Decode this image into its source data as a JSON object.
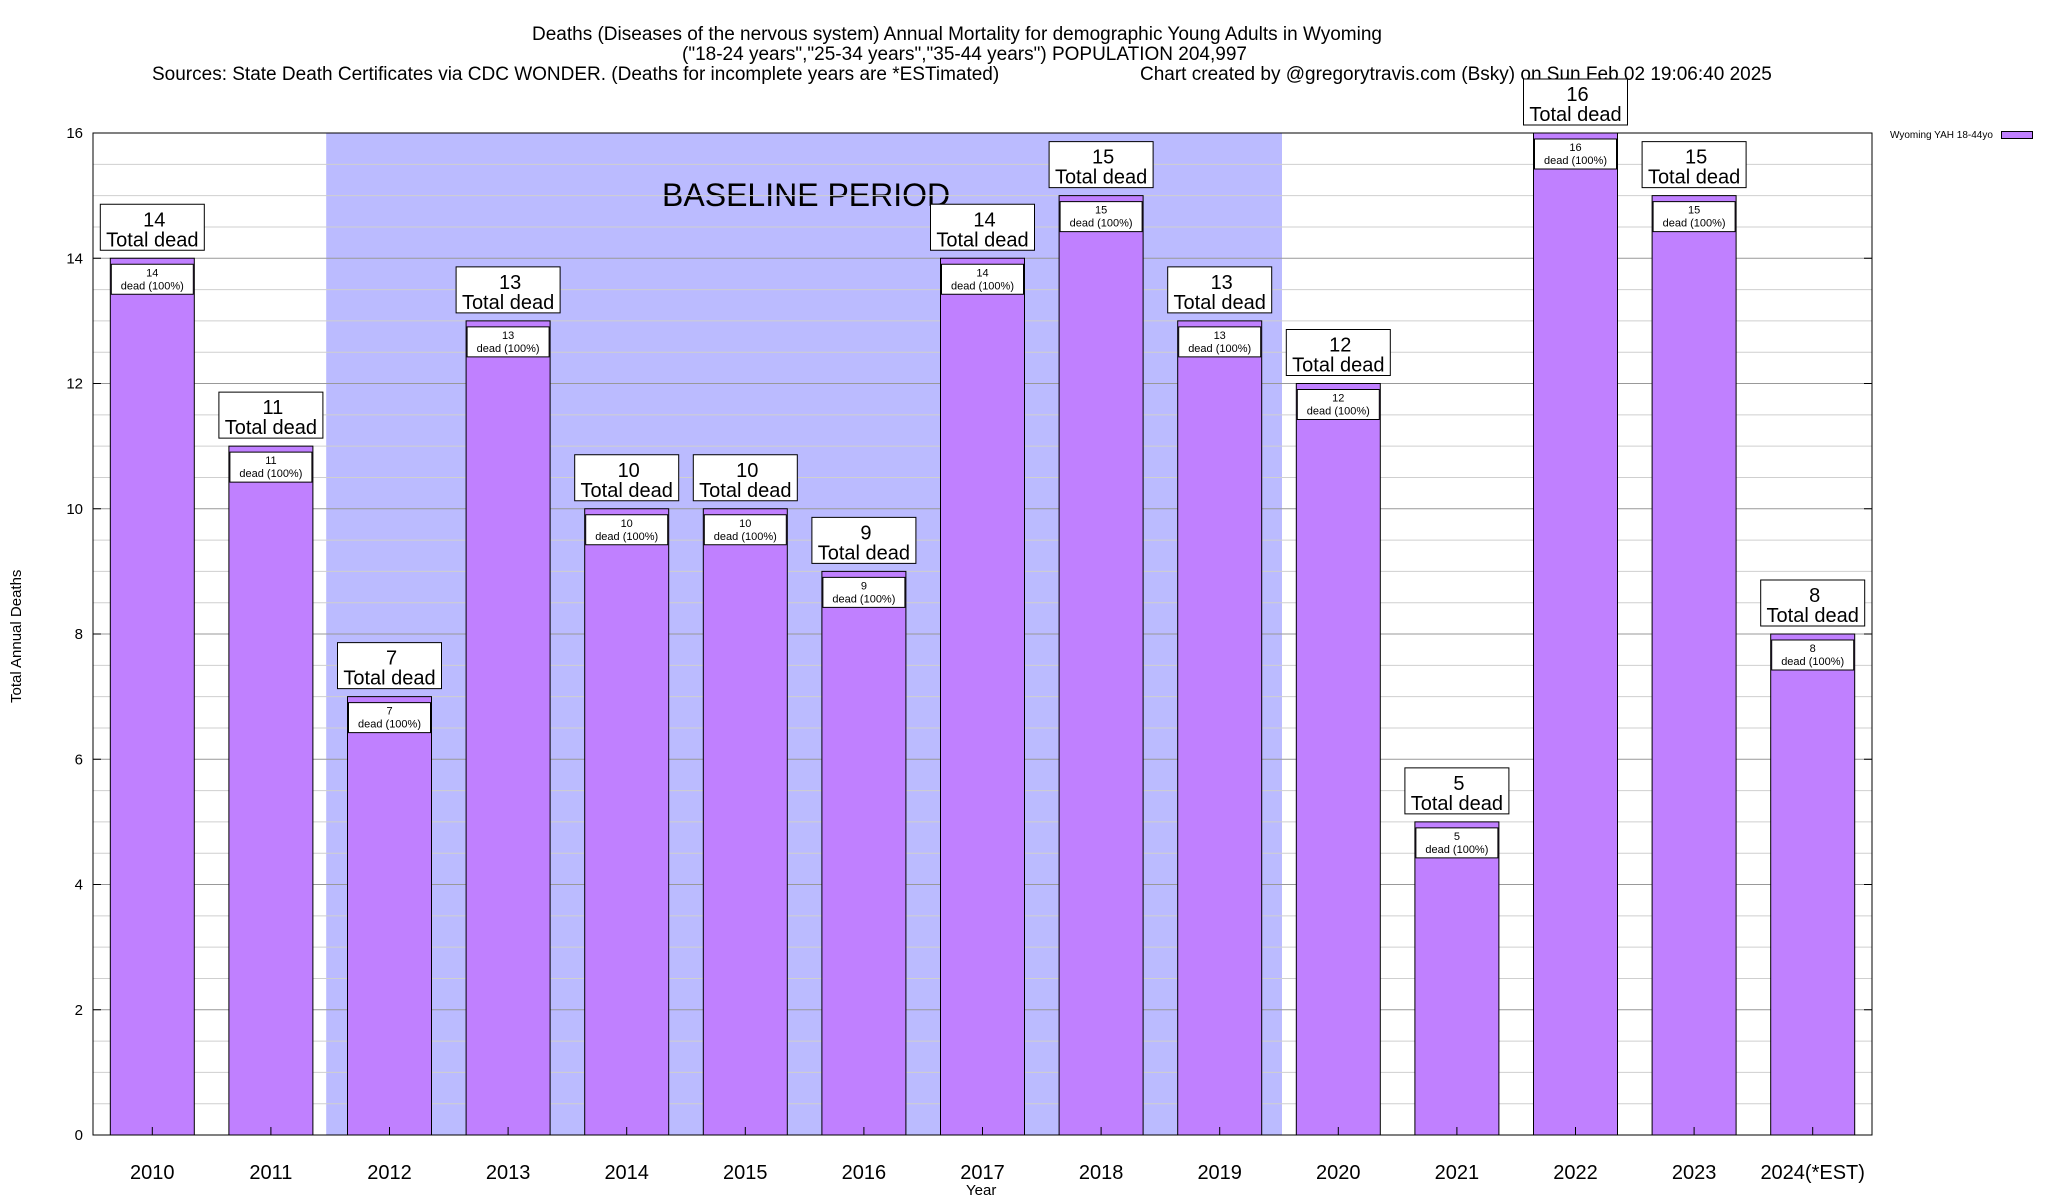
{
  "title_lines": [
    "Deaths (Diseases of the nervous system) Annual Mortality for demographic Young Adults in Wyoming",
    "(\"18-24 years\",\"25-34 years\",\"35-44 years\") POPULATION 204,997",
    "Sources: State Death Certificates via CDC WONDER. (Deaths for incomplete years are *ESTimated)",
    "Chart created by @gregorytravis.com (Bsky) on Sun Feb 02 19:06:40 2025"
  ],
  "baseline_label": "BASELINE PERIOD",
  "total_label": "Total dead",
  "inner_label": "dead (100%)",
  "legend_label": "Wyoming YAH 18-44yo",
  "colors": {
    "bar": "#c080ff",
    "baseline": "#bbbbff"
  },
  "chart_data": {
    "type": "bar",
    "xlabel": "Year",
    "ylabel": "Total Annual Deaths",
    "ylim": [
      0,
      16
    ],
    "yticks": [
      0,
      2,
      4,
      6,
      8,
      10,
      12,
      14,
      16
    ],
    "grid": true,
    "legend_position": "top-right",
    "categories": [
      "2010",
      "2011",
      "2012",
      "2013",
      "2014",
      "2015",
      "2016",
      "2017",
      "2018",
      "2019",
      "2020",
      "2021",
      "2022",
      "2023",
      "2024(*EST)"
    ],
    "series": [
      {
        "name": "Wyoming YAH 18-44yo",
        "values": [
          14,
          11,
          7,
          13,
          10,
          10,
          9,
          14,
          15,
          13,
          12,
          5,
          16,
          15,
          8
        ]
      }
    ],
    "baseline_period": [
      "2012",
      "2019"
    ]
  }
}
